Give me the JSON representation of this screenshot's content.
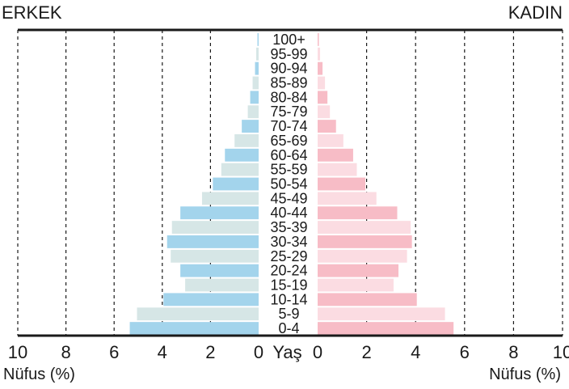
{
  "chart_data": {
    "type": "bar",
    "title_left": "ERKEK",
    "title_right": "KADIN",
    "center_axis_label": "Yaş",
    "xlabel_left": "Nüfus (%)",
    "xlabel_right": "Nüfus (%)",
    "xlim": [
      0,
      10
    ],
    "x_ticks": [
      "0",
      "2",
      "4",
      "6",
      "8",
      "10"
    ],
    "grid": "vertical dashed",
    "categories": [
      "100+",
      "95-99",
      "90-94",
      "85-89",
      "80-84",
      "75-79",
      "70-74",
      "65-69",
      "60-64",
      "55-59",
      "50-54",
      "45-49",
      "40-44",
      "35-39",
      "30-34",
      "25-29",
      "20-24",
      "15-19",
      "10-14",
      "5-9",
      "0-4"
    ],
    "series": [
      {
        "name": "ERKEK",
        "side": "left",
        "values": [
          0.05,
          0.1,
          0.15,
          0.25,
          0.35,
          0.45,
          0.7,
          1.0,
          1.4,
          1.55,
          1.9,
          2.35,
          3.25,
          3.6,
          3.8,
          3.65,
          3.25,
          3.05,
          3.95,
          5.05,
          5.35
        ]
      },
      {
        "name": "KADIN",
        "side": "right",
        "values": [
          0.05,
          0.1,
          0.2,
          0.3,
          0.4,
          0.5,
          0.75,
          1.05,
          1.45,
          1.6,
          1.95,
          2.4,
          3.25,
          3.8,
          3.85,
          3.65,
          3.3,
          3.1,
          4.05,
          5.2,
          5.55
        ]
      }
    ],
    "colors": {
      "male_strong": "#a3d4ec",
      "male_light": "#d6e6e6",
      "female_strong": "#f7bcc6",
      "female_light": "#fbdce2",
      "axis": "#1a1a1a"
    }
  }
}
